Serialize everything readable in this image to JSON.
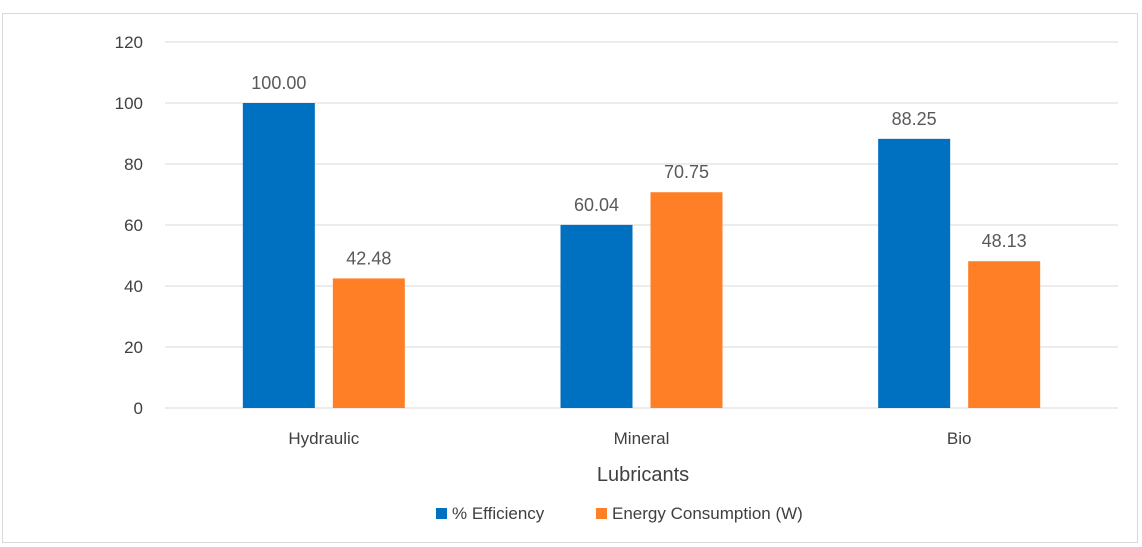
{
  "chart_data": {
    "type": "bar",
    "title": "",
    "xlabel": "Lubricants",
    "ylabel": "",
    "categories": [
      "Hydraulic",
      "Mineral",
      "Bio"
    ],
    "series": [
      {
        "name": "% Efficiency",
        "color": "#0070C0",
        "values": [
          100.0,
          60.04,
          88.25
        ],
        "labels": [
          "100.00",
          "60.04",
          "88.25"
        ]
      },
      {
        "name": "Energy Consumption (W)",
        "color": "#FF7F27",
        "values": [
          42.48,
          70.75,
          48.13
        ],
        "labels": [
          "42.48",
          "70.75",
          "48.13"
        ]
      }
    ],
    "ylim": [
      0,
      120
    ],
    "yticks": [
      0,
      20,
      40,
      60,
      80,
      100,
      120
    ],
    "grid": true,
    "legend": "bottom"
  }
}
